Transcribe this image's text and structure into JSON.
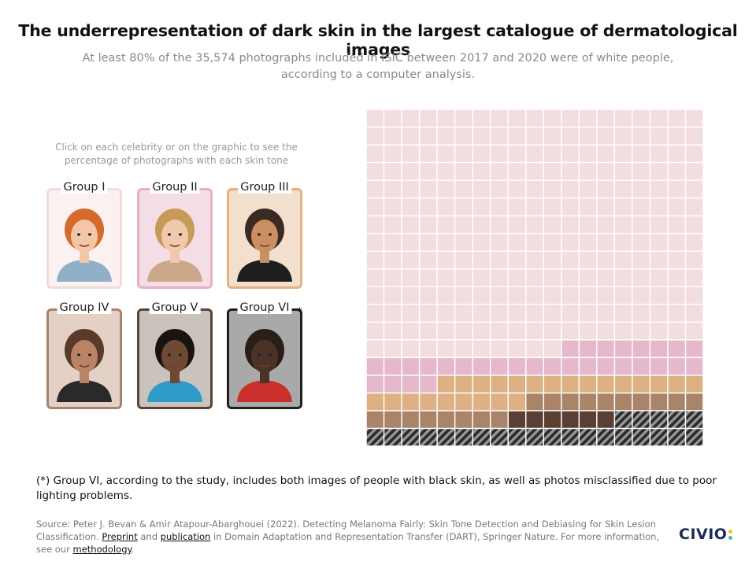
{
  "header": {
    "title": "The underrepresentation of dark skin in the largest catalogue of dermatological images",
    "subtitle": "At least 80% of the 35,574 photographs included in ISIC between 2017 and 2020 were of white people, according to a computer analysis."
  },
  "instructions": "Click on each celebrity or on the graphic to see the percentage of photographs with each skin tone",
  "groups": [
    {
      "label": "Group I",
      "color": "#f2dede",
      "border": "#f1dcdc",
      "bg": "#fbf1f1",
      "skin": "#f2c7a8",
      "hair": "#d46a2c",
      "shirt": "#8fb0c8"
    },
    {
      "label": "Group II",
      "color": "#e6b8cc",
      "border": "#e4b0c6",
      "bg": "#f5dde6",
      "skin": "#f0c9ad",
      "hair": "#c79a5a",
      "shirt": "#c9a88a"
    },
    {
      "label": "Group III",
      "color": "#deb083",
      "border": "#e2b184",
      "bg": "#f3dfcd",
      "skin": "#c98f63",
      "hair": "#3a2a22",
      "shirt": "#1e1e1e"
    },
    {
      "label": "Group IV",
      "color": "#a98468",
      "border": "#a8856a",
      "bg": "#e3d1c6",
      "skin": "#b88465",
      "hair": "#5a3a2a",
      "shirt": "#2a2a2a"
    },
    {
      "label": "Group V",
      "color": "#5a4033",
      "border": "#5a4236",
      "bg": "#c9c2bd",
      "skin": "#6e4a35",
      "hair": "#1a1410",
      "shirt": "#2f9bc9"
    },
    {
      "label": "Group VI",
      "color": "#3a3a3a",
      "border": "#1f1f1f",
      "bg": "#a9a9a9",
      "skin": "#4a3226",
      "hair": "#2a1e18",
      "shirt": "#c9302c",
      "asterisk": "*"
    }
  ],
  "chart_data": {
    "type": "waffle",
    "rows": 19,
    "cols": 19,
    "cells_row_major_top_to_bottom": [
      {
        "group": "Group I",
        "cells": 258
      },
      {
        "group": "Group II",
        "cells": 31
      },
      {
        "group": "Group III",
        "cells": 24
      },
      {
        "group": "Group IV",
        "cells": 18
      },
      {
        "group": "Group V",
        "cells": 6
      },
      {
        "group": "Group VI",
        "cells": 24
      }
    ]
  },
  "footnote": "(*) Group VI, according to the study, includes both images of people with black skin, as well as photos misclassified due to poor lighting problems.",
  "source": {
    "part1": "Source: Peter J. Bevan & Amir Atapour-Abarghouei (2022). Detecting Melanoma Fairly: Skin Tone Detection and Debiasing for Skin Lesion Classification. ",
    "link1": "Preprint",
    "and": " and ",
    "link2": "publication",
    "part2": " in Domain Adaptation and Representation Transfer (DART), Springer Nature. For more information, see our ",
    "link3": "methodology",
    "end": "."
  },
  "logo": {
    "text": "CIVIO",
    "dot_colors": [
      "#f3c623",
      "#3fc1a5"
    ]
  }
}
